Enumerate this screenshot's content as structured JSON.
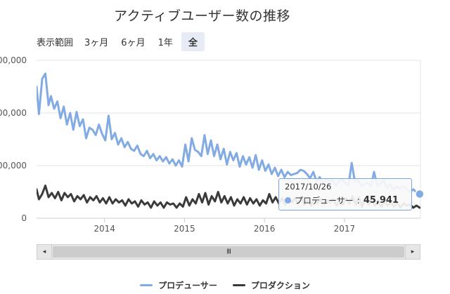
{
  "title": "アクティブユーザー数の推移",
  "range_selector": {
    "label": "表示範囲",
    "options": [
      "3ヶ月",
      "6ヶ月",
      "1年",
      "全"
    ],
    "selected": "全"
  },
  "tooltip": {
    "date": "2017/10/26",
    "series": "プロデューサー",
    "separator": ": ",
    "value": "45,941"
  },
  "navigator": {
    "grip": "III",
    "left_arrow": "◂",
    "right_arrow": "▸"
  },
  "legend": [
    {
      "name": "プロデューサー",
      "color": "#82aae3"
    },
    {
      "name": "プロダクション",
      "color": "#3a3a3a"
    }
  ],
  "colors": {
    "producer": "#82aae3",
    "production": "#3a3a3a",
    "grid": "#e6e6e6"
  },
  "chart_data": {
    "type": "line",
    "title": "アクティブユーザー数の推移",
    "y_tick_labels": [
      "00,000",
      "00,000",
      "00,000",
      "0"
    ],
    "y_tick_values": [
      300000,
      200000,
      100000,
      0
    ],
    "ylim": [
      0,
      300000
    ],
    "x_tick_labels": [
      "2014",
      "2015",
      "2016",
      "2017"
    ],
    "x_tick_years": [
      2014,
      2015,
      2016,
      2017
    ],
    "xlim": [
      2013.15,
      2017.95
    ],
    "grid": "horizontal",
    "legend_position": "bottom",
    "series": [
      {
        "name": "プロデューサー",
        "color": "#82aae3",
        "x": [
          2013.15,
          2013.18,
          2013.22,
          2013.26,
          2013.3,
          2013.33,
          2013.37,
          2013.41,
          2013.45,
          2013.49,
          2013.53,
          2013.57,
          2013.61,
          2013.65,
          2013.69,
          2013.73,
          2013.77,
          2013.81,
          2013.85,
          2013.89,
          2013.93,
          2013.97,
          2014.01,
          2014.05,
          2014.09,
          2014.13,
          2014.17,
          2014.21,
          2014.25,
          2014.29,
          2014.33,
          2014.37,
          2014.41,
          2014.45,
          2014.49,
          2014.53,
          2014.57,
          2014.61,
          2014.65,
          2014.69,
          2014.73,
          2014.77,
          2014.81,
          2014.85,
          2014.89,
          2014.93,
          2014.97,
          2015.01,
          2015.05,
          2015.09,
          2015.13,
          2015.17,
          2015.21,
          2015.25,
          2015.29,
          2015.33,
          2015.37,
          2015.41,
          2015.45,
          2015.49,
          2015.53,
          2015.57,
          2015.61,
          2015.65,
          2015.69,
          2015.73,
          2015.77,
          2015.81,
          2015.85,
          2015.89,
          2015.93,
          2015.97,
          2016.01,
          2016.05,
          2016.09,
          2016.13,
          2016.17,
          2016.21,
          2016.25,
          2016.29,
          2016.33,
          2016.37,
          2016.41,
          2016.45,
          2016.49,
          2016.53,
          2016.57,
          2016.61,
          2016.65,
          2016.69,
          2016.73,
          2016.77,
          2016.81,
          2016.85,
          2016.89,
          2016.93,
          2016.97,
          2017.01,
          2017.05,
          2017.09,
          2017.13,
          2017.17,
          2017.21,
          2017.25,
          2017.29,
          2017.33,
          2017.37,
          2017.41,
          2017.45,
          2017.49,
          2017.53,
          2017.57,
          2017.61,
          2017.65,
          2017.69,
          2017.73,
          2017.77,
          2017.82,
          2017.86,
          2017.9,
          2017.94
        ],
        "values": [
          250000,
          198000,
          265000,
          275000,
          215000,
          232000,
          208000,
          222000,
          190000,
          212000,
          178000,
          200000,
          168000,
          202000,
          175000,
          188000,
          152000,
          172000,
          168000,
          158000,
          178000,
          160000,
          148000,
          195000,
          150000,
          162000,
          140000,
          152000,
          135000,
          145000,
          132000,
          128000,
          138000,
          122000,
          118000,
          128000,
          114000,
          122000,
          110000,
          118000,
          108000,
          116000,
          104000,
          112000,
          100000,
          110000,
          98000,
          140000,
          108000,
          152000,
          130000,
          126000,
          118000,
          158000,
          122000,
          148000,
          118000,
          140000,
          112000,
          132000,
          102000,
          126000,
          110000,
          124000,
          98000,
          118000,
          102000,
          116000,
          96000,
          120000,
          92000,
          110000,
          90000,
          102000,
          84000,
          96000,
          80000,
          92000,
          78000,
          88000,
          82000,
          84000,
          86000,
          92000,
          90000,
          84000,
          76000,
          88000,
          70000,
          78000,
          66000,
          74000,
          70000,
          72000,
          62000,
          70000,
          74000,
          66000,
          62000,
          105000,
          70000,
          72000,
          62000,
          64000,
          68000,
          60000,
          88000,
          62000,
          66000,
          72000,
          58000,
          64000,
          54000,
          60000,
          56000,
          62000,
          56000,
          50000,
          55000,
          49000,
          45941
        ]
      },
      {
        "name": "プロダクション",
        "color": "#3a3a3a",
        "x": [
          2013.15,
          2013.18,
          2013.22,
          2013.26,
          2013.3,
          2013.34,
          2013.38,
          2013.42,
          2013.46,
          2013.5,
          2013.54,
          2013.58,
          2013.62,
          2013.66,
          2013.7,
          2013.74,
          2013.78,
          2013.82,
          2013.86,
          2013.9,
          2013.94,
          2013.98,
          2014.02,
          2014.06,
          2014.1,
          2014.14,
          2014.18,
          2014.22,
          2014.26,
          2014.3,
          2014.34,
          2014.38,
          2014.42,
          2014.46,
          2014.5,
          2014.54,
          2014.58,
          2014.62,
          2014.66,
          2014.7,
          2014.74,
          2014.78,
          2014.82,
          2014.86,
          2014.9,
          2014.94,
          2014.98,
          2015.02,
          2015.06,
          2015.1,
          2015.14,
          2015.18,
          2015.22,
          2015.26,
          2015.3,
          2015.34,
          2015.38,
          2015.42,
          2015.46,
          2015.5,
          2015.54,
          2015.58,
          2015.62,
          2015.66,
          2015.7,
          2015.74,
          2015.78,
          2015.82,
          2015.86,
          2015.9,
          2015.94,
          2015.98,
          2016.02,
          2016.06,
          2016.1,
          2016.14,
          2016.18,
          2016.22,
          2016.26,
          2016.3,
          2016.34,
          2016.38,
          2016.42,
          2016.46,
          2016.5,
          2016.54,
          2016.58,
          2016.62,
          2016.66,
          2016.7,
          2016.74,
          2016.78,
          2016.82,
          2016.86,
          2016.9,
          2016.94,
          2016.98,
          2017.02,
          2017.06,
          2017.1,
          2017.14,
          2017.18,
          2017.22,
          2017.26,
          2017.3,
          2017.34,
          2017.38,
          2017.42,
          2017.46,
          2017.5,
          2017.54,
          2017.58,
          2017.62,
          2017.66,
          2017.7,
          2017.74,
          2017.78,
          2017.82,
          2017.86,
          2017.9,
          2017.94
        ],
        "values": [
          55000,
          36000,
          46000,
          62000,
          40000,
          48000,
          38000,
          50000,
          34000,
          48000,
          40000,
          46000,
          32000,
          42000,
          36000,
          44000,
          30000,
          40000,
          34000,
          42000,
          30000,
          38000,
          28000,
          40000,
          28000,
          36000,
          30000,
          34000,
          24000,
          36000,
          28000,
          32000,
          22000,
          34000,
          26000,
          30000,
          20000,
          32000,
          24000,
          30000,
          20000,
          30000,
          26000,
          28000,
          20000,
          28000,
          22000,
          40000,
          24000,
          36000,
          28000,
          46000,
          30000,
          48000,
          26000,
          42000,
          32000,
          50000,
          30000,
          42000,
          28000,
          40000,
          24000,
          36000,
          28000,
          40000,
          26000,
          38000,
          28000,
          36000,
          24000,
          34000,
          28000,
          46000,
          30000,
          40000,
          28000,
          38000,
          26000,
          36000,
          30000,
          38000,
          28000,
          40000,
          26000,
          36000,
          24000,
          38000,
          28000,
          36000,
          26000,
          34000,
          30000,
          36000,
          24000,
          34000,
          26000,
          38000,
          28000,
          42000,
          26000,
          40000,
          22000,
          38000,
          26000,
          36000,
          24000,
          34000,
          22000,
          32000,
          24000,
          30000,
          22000,
          30000,
          20000,
          28000,
          24000,
          26000,
          20000,
          24000,
          20000
        ]
      }
    ],
    "highlight": {
      "date": "2017/10/26",
      "series": "プロデューサー",
      "value": 45941
    }
  }
}
